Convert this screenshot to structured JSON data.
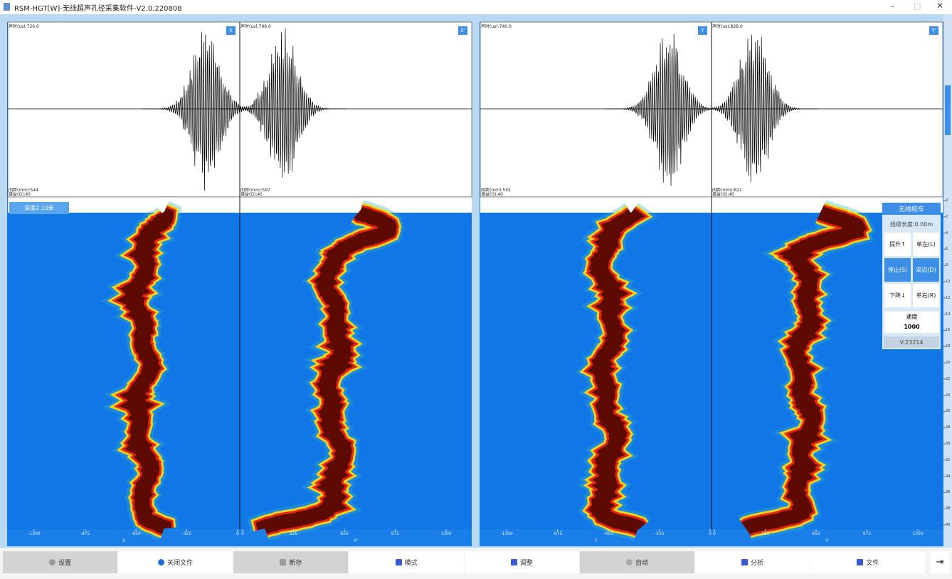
{
  "window": {
    "title": "RSM-HGT[W]-无线超声孔径采集软件-V2.0.220808"
  },
  "waveforms": [
    {
      "label": "X",
      "time": "声时(us):726.0",
      "distance": "间距(mm):544",
      "gain": "增益(G):40"
    },
    {
      "label": "X'",
      "time": "声时(us):796.0",
      "distance": "间距(mm):597",
      "gain": "增益(G):40"
    },
    {
      "label": "Y",
      "time": "声时(us):740.0",
      "distance": "间距(mm):555",
      "gain": "增益(G):40"
    },
    {
      "label": "Y'",
      "time": "声时(us):828.0",
      "distance": "间距(mm):621",
      "gain": "增益(G):40"
    }
  ],
  "depth_label": "深度2.10米",
  "axis": {
    "left_ticks": [
      -1300,
      -975,
      -650,
      -325,
      0
    ],
    "right_ticks": [
      0,
      325,
      650,
      975,
      1300
    ],
    "labels": [
      "X",
      "X'",
      "Y",
      "Y'"
    ],
    "depth_ticks": [
      0,
      2,
      4,
      6,
      8,
      10,
      12,
      14,
      16,
      18,
      20,
      22,
      24,
      26,
      28,
      30,
      32,
      34,
      36,
      38,
      40
    ]
  },
  "winch": {
    "title": "无线绞车",
    "cable": "线缆长度:0.00m",
    "buttons": [
      "提升↑",
      "单左(L)",
      "停止(S)",
      "双边(D)",
      "下降↓",
      "单右(R)"
    ],
    "speed_label": "速度",
    "speed_value": "1000",
    "voltage": "V:23214"
  },
  "toolbar": [
    "设置",
    "关闭文件",
    "新存",
    "模式",
    "调整",
    "自动",
    "分析",
    "文件"
  ]
}
